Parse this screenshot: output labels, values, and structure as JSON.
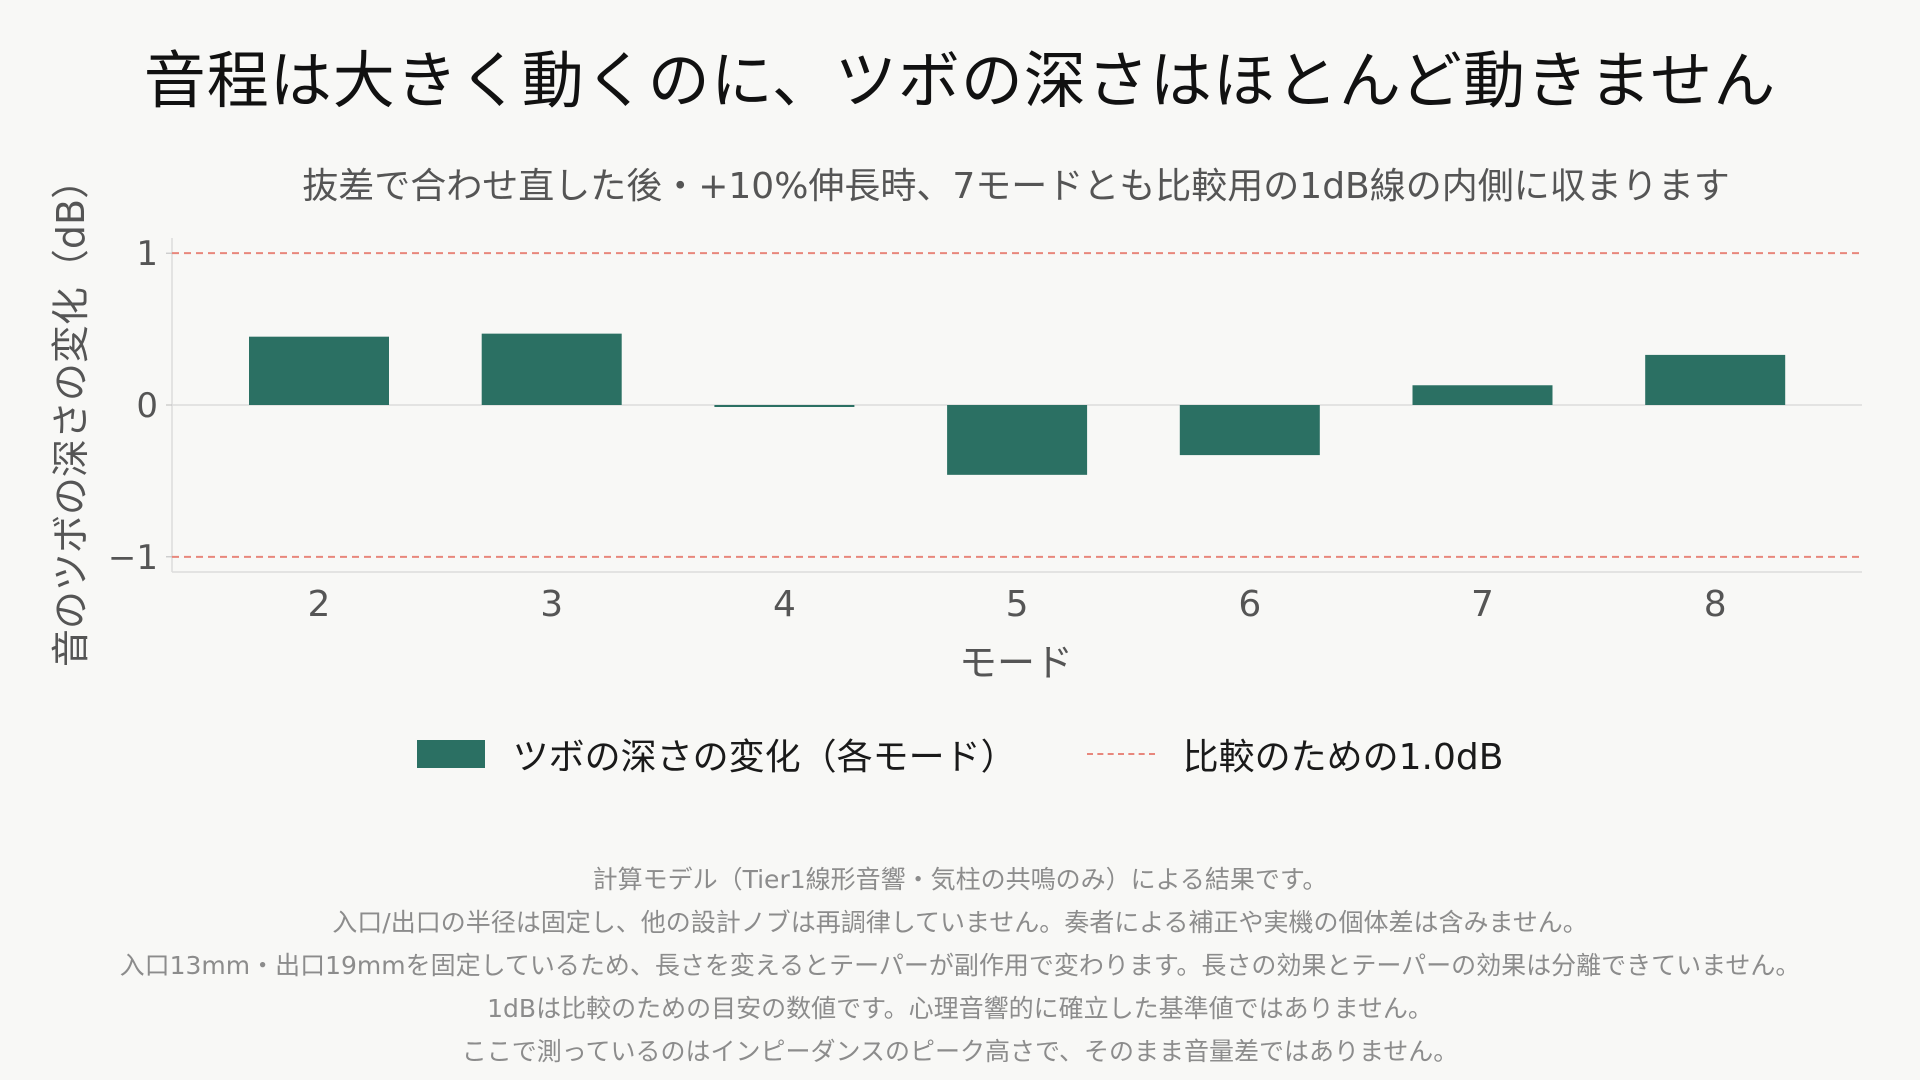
{
  "title": "音程は大きく動くのに、ツボの深さはほとんど動きません",
  "chart_data": {
    "type": "bar",
    "subtitle": "抜差で合わせ直した後・+10%伸長時、7モードとも比較用の1dB線の内側に収まります",
    "xlabel": "モード",
    "ylabel": "音のツボの深さの変化（dB）",
    "categories": [
      "2",
      "3",
      "4",
      "5",
      "6",
      "7",
      "8"
    ],
    "series": [
      {
        "name": "ツボの深さの変化（各モード）",
        "values": [
          0.45,
          0.47,
          -0.01,
          -0.46,
          -0.33,
          0.13,
          0.33
        ],
        "color": "#2b7063"
      }
    ],
    "reference_lines": [
      {
        "name": "比較のための1.0dB",
        "values": [
          1.0,
          -1.0
        ],
        "color": "#e8877c",
        "style": "dashed"
      }
    ],
    "ylim": [
      -1.1,
      1.1
    ],
    "yticks": [
      1,
      0,
      -1
    ],
    "ytick_labels": [
      "1",
      "0",
      "−1"
    ],
    "grid": false,
    "legend_position": "bottom"
  },
  "legend": {
    "bar_label": "ツボの深さの変化（各モード）",
    "line_label": "比較のための1.0dB"
  },
  "notes": [
    "計算モデル（Tier1線形音響・気柱の共鳴のみ）による結果です。",
    "入口/出口の半径は固定し、他の設計ノブは再調律していません。奏者による補正や実機の個体差は含みません。",
    "入口13mm・出口19mmを固定しているため、長さを変えるとテーパーが副作用で変わります。長さの効果とテーパーの効果は分離できていません。",
    "1dBは比較のための目安の数値です。心理音響的に確立した基準値ではありません。",
    "ここで測っているのはインピーダンスのピーク高さで、そのまま音量差ではありません。"
  ]
}
